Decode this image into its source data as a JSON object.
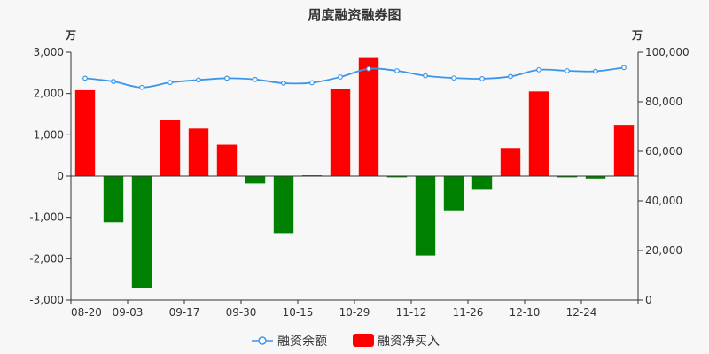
{
  "chart_data": {
    "type": "bar",
    "title": "周度融资融券图",
    "left_unit": "万",
    "right_unit": "万",
    "x_tick_labels": [
      "08-20",
      "09-03",
      "09-17",
      "09-30",
      "10-15",
      "10-29",
      "11-12",
      "11-26",
      "12-10",
      "12-24"
    ],
    "left_axis": {
      "ylim": [
        -3000,
        3000
      ],
      "ticks": [
        3000,
        2000,
        1000,
        0,
        -1000,
        -2000,
        -3000
      ],
      "tick_labels": [
        "3,000",
        "2,000",
        "1,000",
        "0",
        "-1,000",
        "-2,000",
        "-3,000"
      ]
    },
    "right_axis": {
      "ylim": [
        0,
        100000
      ],
      "ticks": [
        100000,
        80000,
        60000,
        40000,
        20000,
        0
      ],
      "tick_labels": [
        "100,000",
        "80,000",
        "60,000",
        "40,000",
        "20,000",
        "0"
      ]
    },
    "colors": {
      "positive": "#ff0000",
      "negative": "#008000",
      "line": "#3a96ea"
    },
    "legend": {
      "position": "bottom",
      "line_label": "融资余额",
      "bar_label": "融资净买入"
    },
    "series": [
      {
        "name": "融资净买入",
        "type": "bar",
        "axis": "left",
        "values": [
          2080,
          -1120,
          -2700,
          1350,
          1150,
          760,
          -180,
          -1380,
          20,
          2120,
          2880,
          -30,
          -1920,
          -830,
          -330,
          680,
          2050,
          -30,
          -60,
          1240
        ]
      },
      {
        "name": "融资余额",
        "type": "line",
        "axis": "right",
        "values": [
          89500,
          88200,
          85800,
          87800,
          88800,
          89500,
          89000,
          87500,
          87700,
          90000,
          93300,
          92500,
          90500,
          89600,
          89300,
          90200,
          92900,
          92500,
          92300,
          93800
        ]
      }
    ]
  }
}
